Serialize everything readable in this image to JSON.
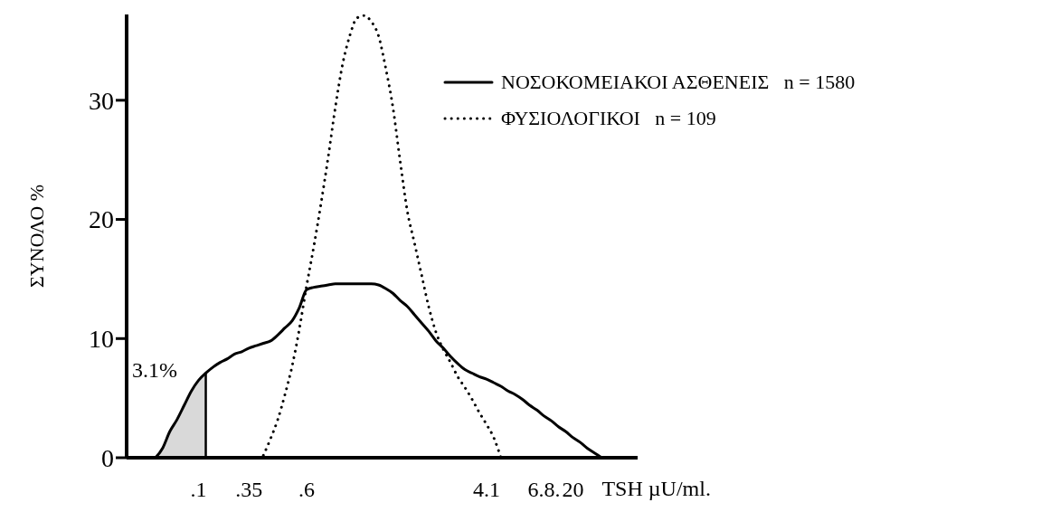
{
  "chart_data": {
    "type": "line",
    "ylabel": "ΣΥΝΟΛΟ %",
    "xlabel": "TSH µU/ml.",
    "categories": [
      null,
      null,
      null,
      null,
      null,
      null,
      null,
      null,
      null,
      null,
      ".1",
      null,
      null,
      null,
      null,
      null,
      null,
      ".35",
      null,
      null,
      null,
      null,
      null,
      null,
      null,
      ".6",
      null,
      null,
      null,
      null,
      null,
      null,
      null,
      null,
      null,
      null,
      null,
      null,
      null,
      null,
      null,
      null,
      null,
      null,
      null,
      null,
      null,
      null,
      null,
      null,
      "4.1",
      null,
      null,
      null,
      null,
      null,
      null,
      null,
      "6.8.",
      null,
      null,
      null,
      "20",
      null,
      null,
      null,
      null,
      null,
      null,
      null,
      null,
      null
    ],
    "series": [
      {
        "type": "area",
        "color": "#d9d9d9",
        "values": [
          null,
          null,
          null,
          null,
          0,
          0.8,
          2.2,
          3.2,
          4.4,
          5.6,
          6.5,
          7.1,
          null,
          null,
          null,
          null,
          null,
          null,
          null,
          null,
          null,
          null,
          null,
          null,
          null,
          null,
          null,
          null,
          null,
          null,
          null,
          null,
          null,
          null,
          null,
          null,
          null,
          null,
          null,
          null,
          null,
          null,
          null,
          null,
          null,
          null,
          null,
          null,
          null,
          null,
          null,
          null,
          null,
          null,
          null,
          null,
          null,
          null,
          null,
          null,
          null,
          null,
          null,
          null,
          null,
          null,
          null,
          null,
          null,
          null,
          null,
          null
        ]
      },
      {
        "name": "ΝΟΣΟΚΟΜΕΙΑΚΟΙ ΑΣΘΕΝΕΙΣ   n = 1580",
        "color": "#000000",
        "line_style": "solid",
        "values": [
          null,
          null,
          null,
          null,
          0,
          0.8,
          2.2,
          3.2,
          4.4,
          5.6,
          6.5,
          7.1,
          7.6,
          8.0,
          8.3,
          8.7,
          8.9,
          9.2,
          9.4,
          9.6,
          9.8,
          10.3,
          10.9,
          11.5,
          12.6,
          14.1,
          14.3,
          14.4,
          14.5,
          14.6,
          14.6,
          14.6,
          14.6,
          14.6,
          14.6,
          14.5,
          14.2,
          13.8,
          13.2,
          12.7,
          12.0,
          11.3,
          10.6,
          9.8,
          9.2,
          8.5,
          7.9,
          7.4,
          7.1,
          6.8,
          6.6,
          6.3,
          6.0,
          5.6,
          5.3,
          4.9,
          4.4,
          4.0,
          3.5,
          3.1,
          2.6,
          2.2,
          1.7,
          1.3,
          0.8,
          0.4,
          0,
          null,
          null,
          null,
          null,
          null
        ]
      },
      {
        "name": "ΦΥΣΙΟΛΟΓΙΚΟΙ   n = 109",
        "color": "#000000",
        "line_style": "dotted",
        "values": [
          null,
          null,
          null,
          null,
          null,
          null,
          null,
          null,
          null,
          null,
          null,
          null,
          null,
          null,
          null,
          null,
          null,
          null,
          null,
          0.2,
          1.6,
          3.2,
          5.3,
          7.7,
          10.8,
          14.4,
          17.7,
          21.3,
          25.2,
          29.4,
          33.0,
          35.4,
          36.9,
          37.1,
          36.6,
          35.4,
          32.7,
          29.4,
          24.9,
          20.7,
          18.0,
          15.3,
          12.6,
          10.5,
          9.1,
          8.0,
          6.8,
          5.9,
          4.9,
          3.8,
          2.8,
          1.7,
          0,
          null,
          null,
          null,
          null,
          null,
          null,
          null,
          null,
          null,
          null,
          null,
          null,
          null,
          null,
          null,
          null,
          null,
          null,
          null
        ]
      }
    ],
    "ylim": [
      0,
      37.2
    ],
    "yticks": [
      0,
      10,
      20,
      30
    ],
    "legend": "top right",
    "marker": "none",
    "annotations": [
      "3.1%"
    ]
  }
}
